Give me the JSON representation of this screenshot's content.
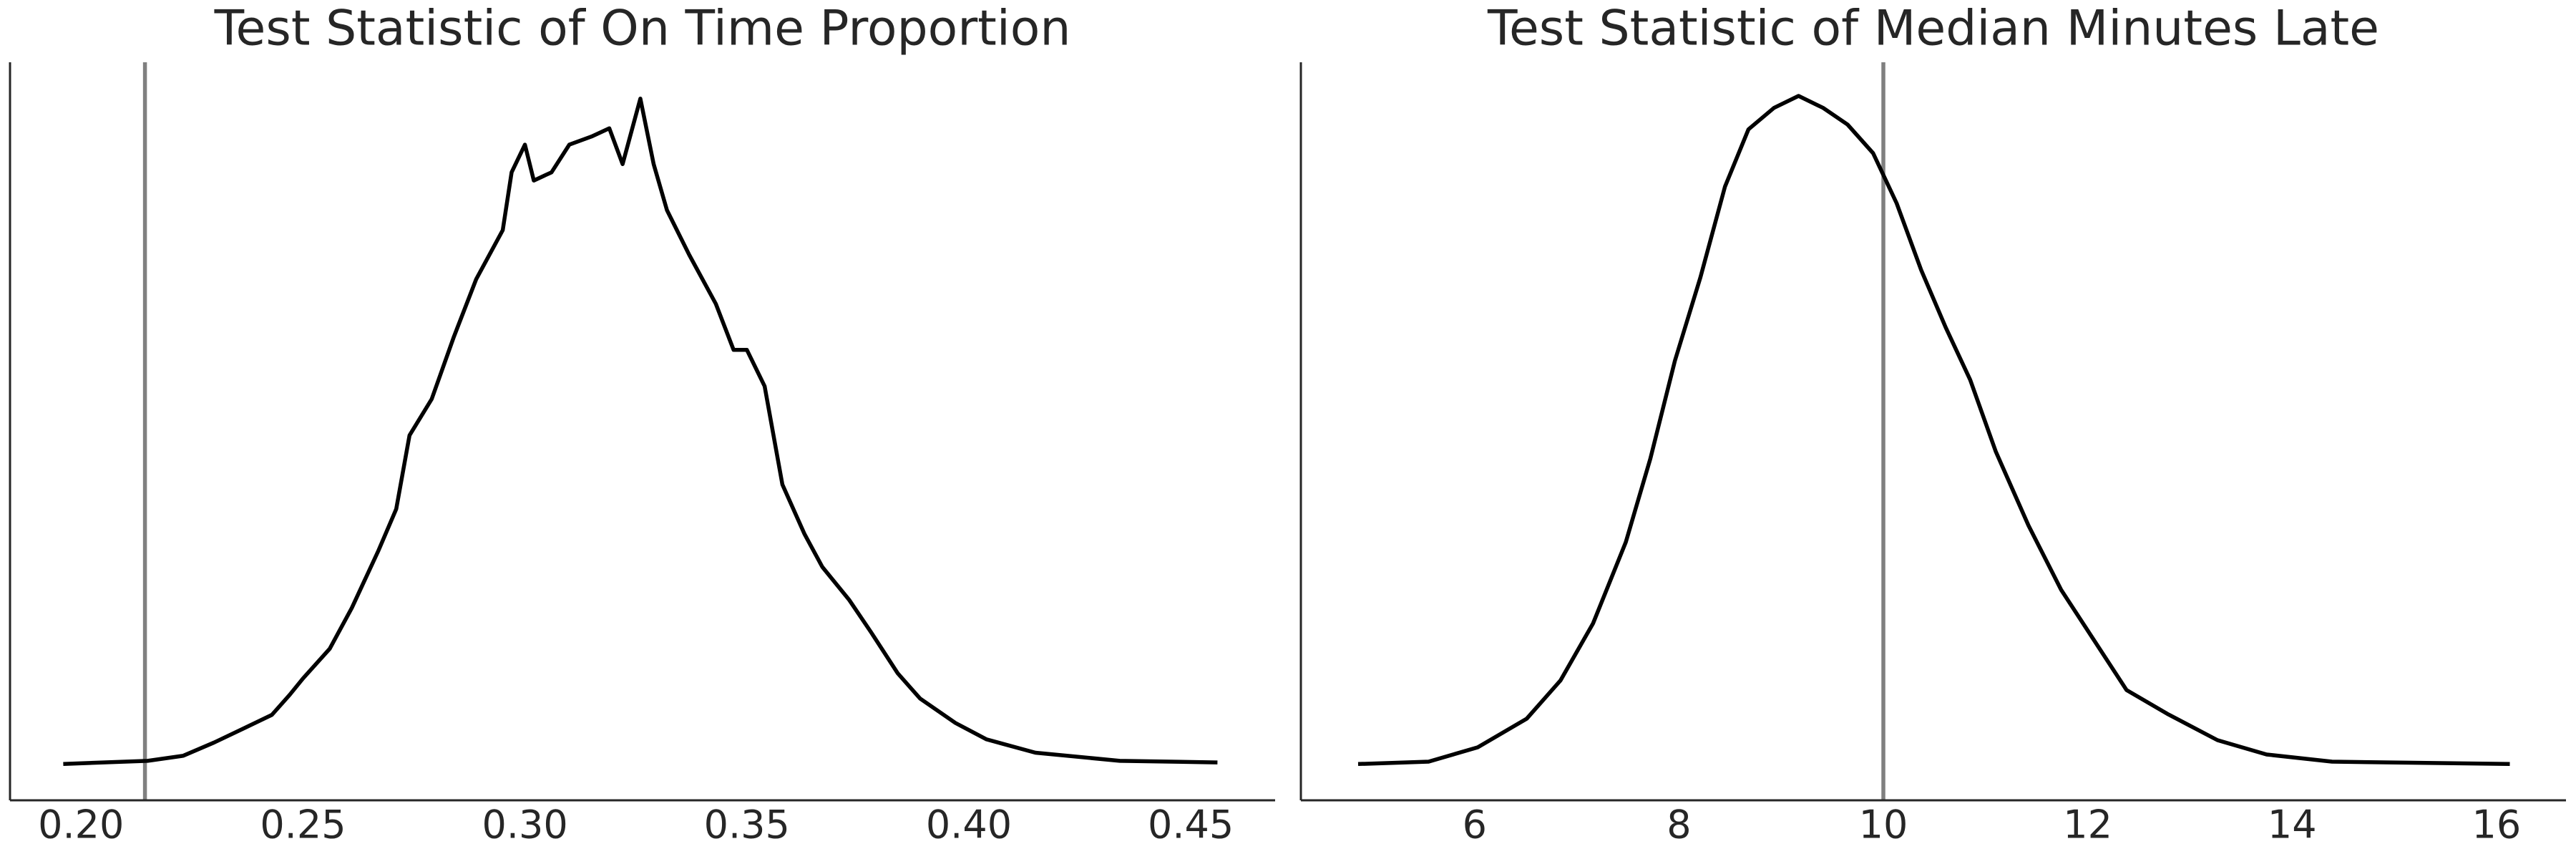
{
  "chart_data": [
    {
      "type": "line",
      "title": "Test Statistic of On Time Proportion",
      "x": [
        0.196,
        0.215,
        0.223,
        0.23,
        0.237,
        0.243,
        0.247,
        0.25,
        0.256,
        0.261,
        0.267,
        0.271,
        0.274,
        0.279,
        0.284,
        0.289,
        0.295,
        0.297,
        0.3,
        0.302,
        0.306,
        0.31,
        0.315,
        0.319,
        0.322,
        0.324,
        0.326,
        0.329,
        0.332,
        0.337,
        0.343,
        0.347,
        0.35,
        0.354,
        0.358,
        0.363,
        0.367,
        0.373,
        0.378,
        0.384,
        0.389,
        0.397,
        0.404,
        0.415,
        0.434,
        0.456
      ],
      "values": [
        0,
        0.06,
        0.16,
        0.42,
        0.71,
        0.96,
        1.35,
        1.67,
        2.25,
        3.05,
        4.17,
        4.98,
        6.42,
        7.13,
        8.35,
        9.47,
        10.43,
        11.56,
        12.1,
        11.4,
        11.56,
        12.1,
        12.26,
        12.42,
        11.72,
        12.36,
        13.0,
        11.72,
        10.82,
        9.95,
        8.99,
        8.09,
        8.09,
        7.38,
        5.46,
        4.49,
        3.85,
        3.21,
        2.57,
        1.77,
        1.28,
        0.8,
        0.48,
        0.22,
        0.06,
        0.03
      ],
      "color": "#000000",
      "xlim": [
        0.184,
        0.469
      ],
      "ylim": [
        -0.71,
        13.71
      ],
      "xticks": [
        {
          "value": 0.2,
          "label": "0.20"
        },
        {
          "value": 0.25,
          "label": "0.25"
        },
        {
          "value": 0.3,
          "label": "0.30"
        },
        {
          "value": 0.35,
          "label": "0.35"
        },
        {
          "value": 0.4,
          "label": "0.40"
        },
        {
          "value": 0.45,
          "label": "0.45"
        }
      ],
      "vline": {
        "value": 0.2144,
        "color": "#808080"
      }
    },
    {
      "type": "line",
      "title": "Test Statistic of Median Minutes Late",
      "x": [
        4.86,
        5.55,
        6.03,
        6.51,
        6.84,
        7.16,
        7.48,
        7.72,
        7.96,
        8.21,
        8.45,
        8.68,
        8.93,
        9.17,
        9.41,
        9.65,
        9.9,
        10.13,
        10.37,
        10.61,
        10.85,
        11.1,
        11.42,
        11.74,
        12.06,
        12.38,
        12.78,
        13.27,
        13.75,
        14.39,
        16.13
      ],
      "values": [
        0,
        0.001,
        0.007,
        0.019,
        0.035,
        0.059,
        0.093,
        0.128,
        0.169,
        0.204,
        0.242,
        0.266,
        0.275,
        0.28,
        0.275,
        0.268,
        0.256,
        0.235,
        0.207,
        0.183,
        0.161,
        0.131,
        0.1,
        0.073,
        0.052,
        0.031,
        0.021,
        0.01,
        0.004,
        0.001,
        0
      ],
      "color": "#000000",
      "xlim": [
        4.3,
        16.68
      ],
      "ylim": [
        -0.0152,
        0.2941
      ],
      "xticks": [
        6,
        8,
        10,
        12,
        14,
        16
      ],
      "vline": {
        "value": 10.0,
        "color": "#808080"
      }
    }
  ]
}
